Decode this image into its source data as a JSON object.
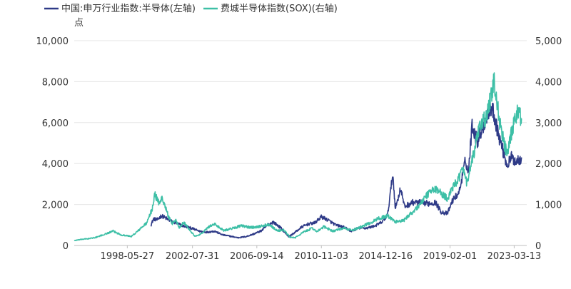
{
  "chart_data": {
    "type": "line",
    "title": "",
    "unit_left": "点",
    "legend_position": "top-left",
    "grid": true,
    "x_axis": {
      "type": "date",
      "range": [
        "1995-01-01",
        "2024-01-01"
      ],
      "tick_labels": [
        "1998-05-27",
        "2002-07-31",
        "2006-09-14",
        "2010-11-03",
        "2014-12-16",
        "2019-02-01",
        "2023-03-13"
      ]
    },
    "y_left": {
      "range": [
        0,
        10000
      ],
      "tick_values": [
        0,
        2000,
        4000,
        6000,
        8000,
        10000
      ],
      "tick_labels": [
        "0",
        "2,000",
        "4,000",
        "6,000",
        "8,000",
        "10,000"
      ]
    },
    "y_right": {
      "range": [
        0,
        5000
      ],
      "tick_values": [
        0,
        1000,
        2000,
        3000,
        4000,
        5000
      ],
      "tick_labels": [
        "0",
        "1,000",
        "2,000",
        "3,000",
        "4,000",
        "5,000"
      ]
    },
    "series": [
      {
        "name": "中国:申万行业指数:半导体(左轴)",
        "axis": "left",
        "color": "#2e3a87",
        "points": [
          [
            "1999-12-01",
            1000
          ],
          [
            "2000-02-01",
            1300
          ],
          [
            "2000-05-01",
            1250
          ],
          [
            "2000-08-01",
            1450
          ],
          [
            "2000-11-01",
            1350
          ],
          [
            "2001-03-01",
            1200
          ],
          [
            "2001-07-01",
            1100
          ],
          [
            "2002-01-01",
            950
          ],
          [
            "2002-07-01",
            850
          ],
          [
            "2003-01-01",
            700
          ],
          [
            "2003-07-01",
            650
          ],
          [
            "2004-01-01",
            700
          ],
          [
            "2004-07-01",
            520
          ],
          [
            "2005-01-01",
            450
          ],
          [
            "2005-07-01",
            380
          ],
          [
            "2006-01-01",
            430
          ],
          [
            "2006-07-01",
            560
          ],
          [
            "2007-01-01",
            720
          ],
          [
            "2007-05-01",
            950
          ],
          [
            "2007-10-01",
            1150
          ],
          [
            "2008-04-01",
            850
          ],
          [
            "2008-10-01",
            420
          ],
          [
            "2009-03-01",
            650
          ],
          [
            "2009-08-01",
            900
          ],
          [
            "2010-01-01",
            1050
          ],
          [
            "2010-06-01",
            1100
          ],
          [
            "2010-11-01",
            1400
          ],
          [
            "2011-04-01",
            1250
          ],
          [
            "2011-10-01",
            1000
          ],
          [
            "2012-04-01",
            900
          ],
          [
            "2012-10-01",
            700
          ],
          [
            "2013-04-01",
            850
          ],
          [
            "2013-10-01",
            850
          ],
          [
            "2014-04-01",
            950
          ],
          [
            "2014-10-01",
            1150
          ],
          [
            "2015-02-01",
            1500
          ],
          [
            "2015-06-01",
            3500
          ],
          [
            "2015-08-01",
            1800
          ],
          [
            "2015-12-01",
            2800
          ],
          [
            "2016-03-01",
            1900
          ],
          [
            "2016-09-01",
            2100
          ],
          [
            "2017-03-01",
            2100
          ],
          [
            "2017-09-01",
            2050
          ],
          [
            "2018-03-01",
            2100
          ],
          [
            "2018-07-01",
            1650
          ],
          [
            "2018-12-01",
            1550
          ],
          [
            "2019-04-01",
            2200
          ],
          [
            "2019-09-01",
            2600
          ],
          [
            "2020-02-01",
            4200
          ],
          [
            "2020-04-01",
            3500
          ],
          [
            "2020-07-01",
            5900
          ],
          [
            "2020-11-01",
            5100
          ],
          [
            "2021-02-01",
            5600
          ],
          [
            "2021-06-01",
            6300
          ],
          [
            "2021-09-01",
            6800
          ],
          [
            "2021-12-01",
            6400
          ],
          [
            "2022-03-01",
            5500
          ],
          [
            "2022-06-01",
            4800
          ],
          [
            "2022-10-01",
            3900
          ],
          [
            "2023-01-01",
            4300
          ],
          [
            "2023-05-01",
            4100
          ],
          [
            "2023-09-01",
            4300
          ]
        ]
      },
      {
        "name": "费城半导体指数(SOX)(右轴)",
        "axis": "right",
        "color": "#3dbfa6",
        "points": [
          [
            "1995-01-01",
            120
          ],
          [
            "1995-07-01",
            150
          ],
          [
            "1996-01-01",
            170
          ],
          [
            "1996-06-01",
            200
          ],
          [
            "1997-01-01",
            280
          ],
          [
            "1997-07-01",
            350
          ],
          [
            "1998-01-01",
            260
          ],
          [
            "1998-09-01",
            220
          ],
          [
            "1999-03-01",
            380
          ],
          [
            "1999-09-01",
            560
          ],
          [
            "2000-01-01",
            900
          ],
          [
            "2000-03-01",
            1250
          ],
          [
            "2000-06-01",
            1050
          ],
          [
            "2000-09-01",
            1150
          ],
          [
            "2001-01-01",
            750
          ],
          [
            "2001-04-01",
            520
          ],
          [
            "2001-07-01",
            630
          ],
          [
            "2001-10-01",
            430
          ],
          [
            "2002-01-01",
            580
          ],
          [
            "2002-05-01",
            420
          ],
          [
            "2002-10-01",
            220
          ],
          [
            "2003-03-01",
            290
          ],
          [
            "2003-09-01",
            470
          ],
          [
            "2004-01-01",
            520
          ],
          [
            "2004-08-01",
            370
          ],
          [
            "2005-03-01",
            420
          ],
          [
            "2005-09-01",
            480
          ],
          [
            "2006-05-01",
            440
          ],
          [
            "2007-01-01",
            470
          ],
          [
            "2007-07-01",
            520
          ],
          [
            "2008-01-01",
            360
          ],
          [
            "2008-06-01",
            380
          ],
          [
            "2008-11-01",
            200
          ],
          [
            "2009-03-01",
            190
          ],
          [
            "2009-09-01",
            320
          ],
          [
            "2010-04-01",
            420
          ],
          [
            "2010-08-01",
            340
          ],
          [
            "2011-01-01",
            460
          ],
          [
            "2011-08-01",
            350
          ],
          [
            "2012-04-01",
            420
          ],
          [
            "2012-11-01",
            370
          ],
          [
            "2013-06-01",
            460
          ],
          [
            "2013-12-01",
            540
          ],
          [
            "2014-07-01",
            660
          ],
          [
            "2015-02-01",
            720
          ],
          [
            "2015-08-01",
            580
          ],
          [
            "2016-02-01",
            600
          ],
          [
            "2016-08-01",
            780
          ],
          [
            "2017-03-01",
            1000
          ],
          [
            "2017-10-01",
            1300
          ],
          [
            "2018-03-01",
            1380
          ],
          [
            "2018-10-01",
            1200
          ],
          [
            "2018-12-01",
            1150
          ],
          [
            "2019-05-01",
            1450
          ],
          [
            "2019-12-01",
            1850
          ],
          [
            "2020-03-01",
            1500
          ],
          [
            "2020-08-01",
            2200
          ],
          [
            "2020-12-01",
            2800
          ],
          [
            "2021-05-01",
            3100
          ],
          [
            "2021-08-01",
            3400
          ],
          [
            "2021-12-01",
            4000
          ],
          [
            "2022-03-01",
            3300
          ],
          [
            "2022-06-01",
            2700
          ],
          [
            "2022-10-01",
            2200
          ],
          [
            "2023-01-01",
            2700
          ],
          [
            "2023-06-01",
            3300
          ],
          [
            "2023-09-01",
            3100
          ]
        ]
      }
    ]
  }
}
